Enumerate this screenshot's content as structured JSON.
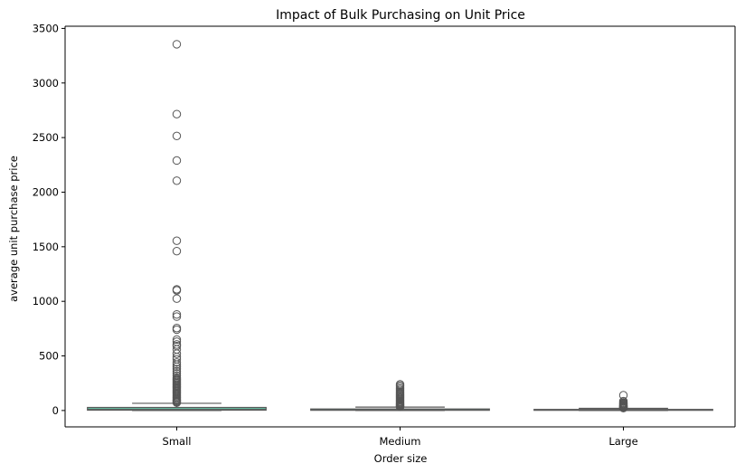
{
  "chart_data": {
    "type": "box",
    "title": "Impact of Bulk Purchasing on Unit Price",
    "xlabel": "Order size",
    "ylabel": "average unit purchase price",
    "categories": [
      "Small",
      "Medium",
      "Large"
    ],
    "ylim": [
      -150,
      3520
    ],
    "yticks": [
      0,
      500,
      1000,
      1500,
      2000,
      2500,
      3000,
      3500
    ],
    "grid": false,
    "legend": "none",
    "colors": {
      "box": "#66c2a5",
      "edge": "#5a5a5a",
      "outlier_edge": "#555555"
    },
    "boxes": [
      {
        "category": "Small",
        "whisker_low": 0,
        "q1": 3,
        "median": 10,
        "q3": 28,
        "whisker_high": 66,
        "outliers": [
          3355,
          2715,
          2515,
          2290,
          2105,
          1555,
          1460,
          1110,
          1100,
          1025,
          880,
          860,
          755,
          740,
          650,
          630,
          605,
          590,
          560,
          520,
          490,
          470,
          440,
          420,
          400,
          380,
          360,
          340,
          320,
          300,
          290,
          280,
          270,
          260,
          250,
          240,
          230,
          220,
          210,
          200,
          190,
          180,
          170,
          160,
          150,
          140,
          130,
          120,
          110,
          100,
          92,
          85,
          78,
          72
        ]
      },
      {
        "category": "Medium",
        "whisker_low": 0,
        "q1": 2,
        "median": 6,
        "q3": 14,
        "whisker_high": 31,
        "outliers": [
          240,
          228,
          215,
          200,
          188,
          175,
          165,
          155,
          145,
          135,
          125,
          115,
          105,
          95,
          85,
          78,
          70,
          62,
          55,
          48,
          42,
          37,
          34
        ]
      },
      {
        "category": "Large",
        "whisker_low": 0,
        "q1": 2,
        "median": 5,
        "q3": 10,
        "whisker_high": 20,
        "outliers": [
          140,
          85,
          75,
          68,
          62,
          56,
          50,
          45,
          40,
          36,
          32,
          28,
          25,
          23
        ]
      }
    ]
  }
}
